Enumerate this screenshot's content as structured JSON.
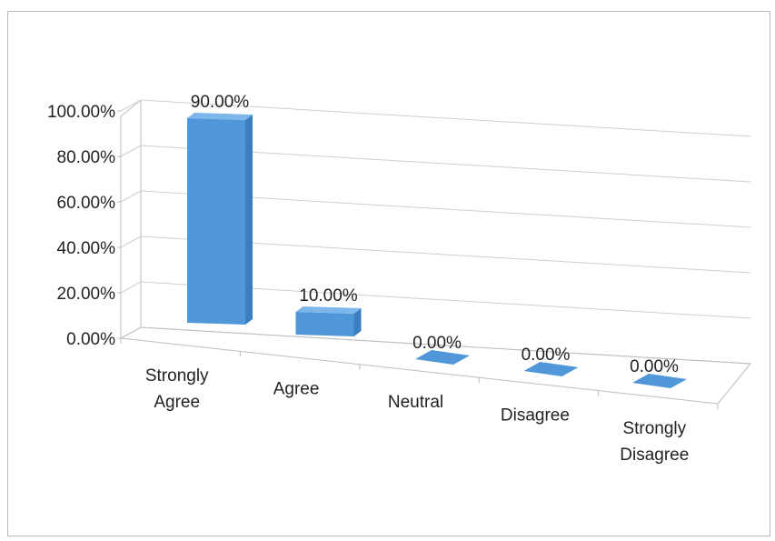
{
  "chart_data": {
    "type": "bar",
    "style": "3d-column",
    "title": "",
    "xlabel": "",
    "ylabel": "",
    "categories": [
      [
        "Strongly",
        "Agree"
      ],
      [
        "Agree"
      ],
      [
        "Neutral"
      ],
      [
        "Disagree"
      ],
      [
        "Strongly",
        "Disagree"
      ]
    ],
    "values": [
      90,
      10,
      0,
      0,
      0
    ],
    "data_labels": [
      "90.00%",
      "10.00%",
      "0.00%",
      "0.00%",
      "0.00%"
    ],
    "ylim": [
      0,
      100
    ],
    "y_ticks": [
      {
        "value": 0,
        "label": "0.00%"
      },
      {
        "value": 20,
        "label": "20.00%"
      },
      {
        "value": 40,
        "label": "40.00%"
      },
      {
        "value": 60,
        "label": "60.00%"
      },
      {
        "value": 80,
        "label": "80.00%"
      },
      {
        "value": 100,
        "label": "100.00%"
      }
    ],
    "grid": true,
    "legend": "none",
    "colors": {
      "bar_front": "#4f97d9",
      "bar_side": "#3a7fc0",
      "bar_top": "#7db6ea",
      "grid": "#cfcfcf",
      "axis": "#bdbdbd"
    }
  }
}
